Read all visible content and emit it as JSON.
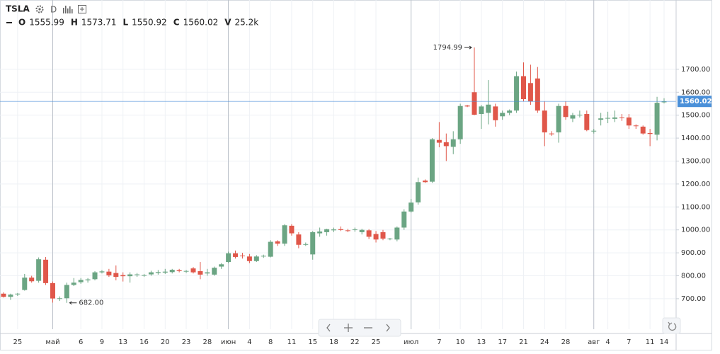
{
  "header": {
    "symbol": "TSLA",
    "interval": "D",
    "ohlcv": [
      {
        "key": "O",
        "value": "1555.99"
      },
      {
        "key": "H",
        "value": "1573.71"
      },
      {
        "key": "L",
        "value": "1550.92"
      },
      {
        "key": "C",
        "value": "1560.02"
      },
      {
        "key": "V",
        "value": "25.2k"
      }
    ]
  },
  "chart_data": {
    "type": "candlestick",
    "categories": [
      null,
      null,
      "25",
      null,
      null,
      null,
      null,
      "май",
      null,
      null,
      null,
      "6",
      null,
      null,
      "9",
      null,
      null,
      "13",
      null,
      null,
      "16",
      null,
      null,
      "20",
      null,
      null,
      "23",
      null,
      null,
      "28",
      null,
      null,
      "июн",
      null,
      null,
      "4",
      null,
      null,
      "8",
      null,
      null,
      "11",
      null,
      null,
      "15",
      null,
      null,
      "18",
      null,
      null,
      "22",
      null,
      null,
      "25",
      null,
      null,
      null,
      null,
      "июл",
      null,
      null,
      null,
      "7",
      null,
      null,
      "10",
      null,
      null,
      "13",
      null,
      null,
      "17",
      null,
      null,
      "21",
      null,
      null,
      "24",
      null,
      null,
      "28",
      null,
      null,
      null,
      "авг",
      null,
      "4",
      null,
      null,
      "7",
      null,
      null,
      "11",
      null,
      "14"
    ],
    "open": [
      722,
      708,
      719,
      738,
      792,
      778,
      870,
      768,
      700,
      702,
      760,
      772,
      780,
      785,
      815,
      818,
      812,
      803,
      798,
      803,
      801,
      806,
      812,
      814,
      816,
      824,
      818,
      832,
      820,
      810,
      805,
      840,
      860,
      898,
      888,
      884,
      864,
      884,
      883,
      950,
      940,
      1018,
      980,
      936,
      893,
      985,
      990,
      998,
      1003,
      998,
      1000,
      990,
      998,
      982,
      990,
      960,
      958,
      1010,
      1080,
      1120,
      1215,
      1210,
      1392,
      1382,
      1362,
      1395,
      1542,
      1600,
      1505,
      1510,
      1538,
      1495,
      1510,
      1520,
      1670,
      1640,
      1660,
      1520,
      1420,
      1425,
      1540,
      1485,
      1500,
      1505,
      1430,
      1480,
      1485,
      1484,
      1490,
      1490,
      1455,
      1450,
      1422,
      1415,
      1555.99
    ],
    "high": [
      728,
      722,
      725,
      808,
      800,
      880,
      882,
      775,
      710,
      770,
      790,
      790,
      790,
      820,
      825,
      830,
      845,
      815,
      815,
      812,
      808,
      822,
      825,
      830,
      830,
      830,
      825,
      838,
      860,
      830,
      840,
      855,
      905,
      910,
      900,
      895,
      890,
      892,
      955,
      955,
      1025,
      1025,
      990,
      945,
      995,
      1010,
      1005,
      1010,
      1015,
      1005,
      1010,
      1005,
      1003,
      995,
      1000,
      965,
      1015,
      1090,
      1135,
      1228,
      1220,
      1400,
      1470,
      1420,
      1430,
      1550,
      1545,
      1794.99,
      1545,
      1653,
      1550,
      1520,
      1525,
      1690,
      1730,
      1720,
      1710,
      1560,
      1430,
      1550,
      1560,
      1510,
      1520,
      1520,
      1440,
      1510,
      1515,
      1520,
      1505,
      1505,
      1460,
      1455,
      1440,
      1580,
      1573.71
    ],
    "low": [
      705,
      695,
      712,
      735,
      770,
      770,
      760,
      683,
      690,
      682,
      755,
      765,
      770,
      780,
      810,
      795,
      780,
      775,
      770,
      795,
      795,
      800,
      805,
      808,
      810,
      815,
      812,
      810,
      785,
      800,
      800,
      830,
      855,
      875,
      875,
      855,
      860,
      878,
      880,
      930,
      930,
      975,
      920,
      930,
      870,
      970,
      975,
      990,
      995,
      990,
      992,
      980,
      960,
      945,
      955,
      955,
      950,
      1000,
      1075,
      1110,
      1205,
      1205,
      1360,
      1300,
      1330,
      1375,
      1535,
      1500,
      1440,
      1460,
      1450,
      1480,
      1500,
      1510,
      1560,
      1545,
      1510,
      1365,
      1410,
      1380,
      1480,
      1470,
      1490,
      1430,
      1420,
      1455,
      1465,
      1470,
      1475,
      1440,
      1440,
      1415,
      1365,
      1390,
      1550.92
    ],
    "close": [
      708,
      718,
      722,
      792,
      776,
      872,
      768,
      701,
      702,
      760,
      770,
      782,
      784,
      815,
      819,
      802,
      795,
      798,
      806,
      806,
      803,
      815,
      816,
      818,
      826,
      820,
      821,
      815,
      805,
      815,
      835,
      850,
      898,
      882,
      886,
      864,
      884,
      887,
      948,
      940,
      1020,
      985,
      935,
      938,
      990,
      993,
      1003,
      1002,
      999,
      996,
      1002,
      1000,
      970,
      958,
      962,
      962,
      1010,
      1080,
      1119,
      1208,
      1208,
      1395,
      1380,
      1365,
      1395,
      1540,
      1538,
      1502,
      1538,
      1546,
      1478,
      1510,
      1520,
      1670,
      1570,
      1560,
      1520,
      1425,
      1418,
      1540,
      1492,
      1500,
      1502,
      1435,
      1432,
      1486,
      1488,
      1490,
      1487,
      1455,
      1452,
      1420,
      1418,
      1554,
      1560.02
    ],
    "up_color": "#6ba583",
    "down_color": "#e0574a",
    "price_line_color": "#4a90d9",
    "ylim": [
      567,
      2002
    ],
    "yticks": [
      {
        "value": 700,
        "label": "700.00"
      },
      {
        "value": 800,
        "label": "800.00"
      },
      {
        "value": 900,
        "label": "900.00"
      },
      {
        "value": 1000,
        "label": "1000.00"
      },
      {
        "value": 1100,
        "label": "1100.00"
      },
      {
        "value": 1200,
        "label": "1200.00"
      },
      {
        "value": 1300,
        "label": "1300.00"
      },
      {
        "value": 1400,
        "label": "1400.00"
      },
      {
        "value": 1500,
        "label": "1500.00"
      },
      {
        "value": 1600,
        "label": "1600.00"
      },
      {
        "value": 1700,
        "label": "1700.00"
      }
    ],
    "annotations": [
      {
        "value": 1794.99,
        "label": "1794.99"
      },
      {
        "value": 682,
        "label": "682.00"
      }
    ],
    "grid": true
  }
}
